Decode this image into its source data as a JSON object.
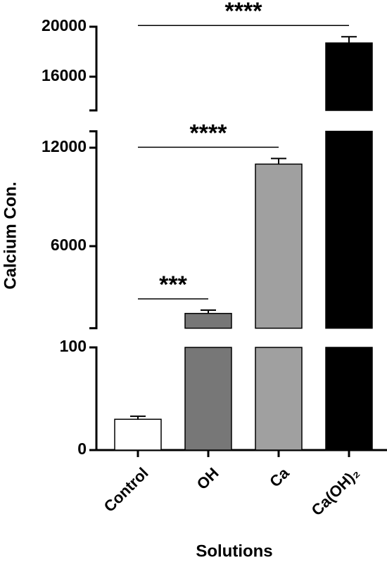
{
  "chart_data": {
    "type": "bar",
    "x_label": "Solutions",
    "y_label": "Calcium Con.",
    "categories": [
      "Control",
      "OH",
      "Ca",
      "Ca(OH)₂"
    ],
    "colors": [
      "#ffffff",
      "#777777",
      "#a0a0a0",
      "#000000"
    ],
    "values": [
      30,
      1900,
      11000,
      18700
    ],
    "errors": [
      3,
      200,
      340,
      500
    ],
    "y_segments": [
      {
        "ylim": [
          0,
          100
        ],
        "yticks": [
          0,
          100
        ]
      },
      {
        "ylim": [
          1000,
          13000
        ],
        "yticks": [
          6000,
          12000
        ]
      },
      {
        "ylim": [
          13300,
          20000
        ],
        "yticks": [
          16000,
          20000
        ]
      }
    ],
    "annotations": [
      {
        "text": "***",
        "between": [
          "Control",
          "OH"
        ]
      },
      {
        "text": "****",
        "between": [
          "Control",
          "Ca"
        ]
      },
      {
        "text": "****",
        "between": [
          "Control",
          "Ca(OH)₂"
        ]
      }
    ]
  }
}
